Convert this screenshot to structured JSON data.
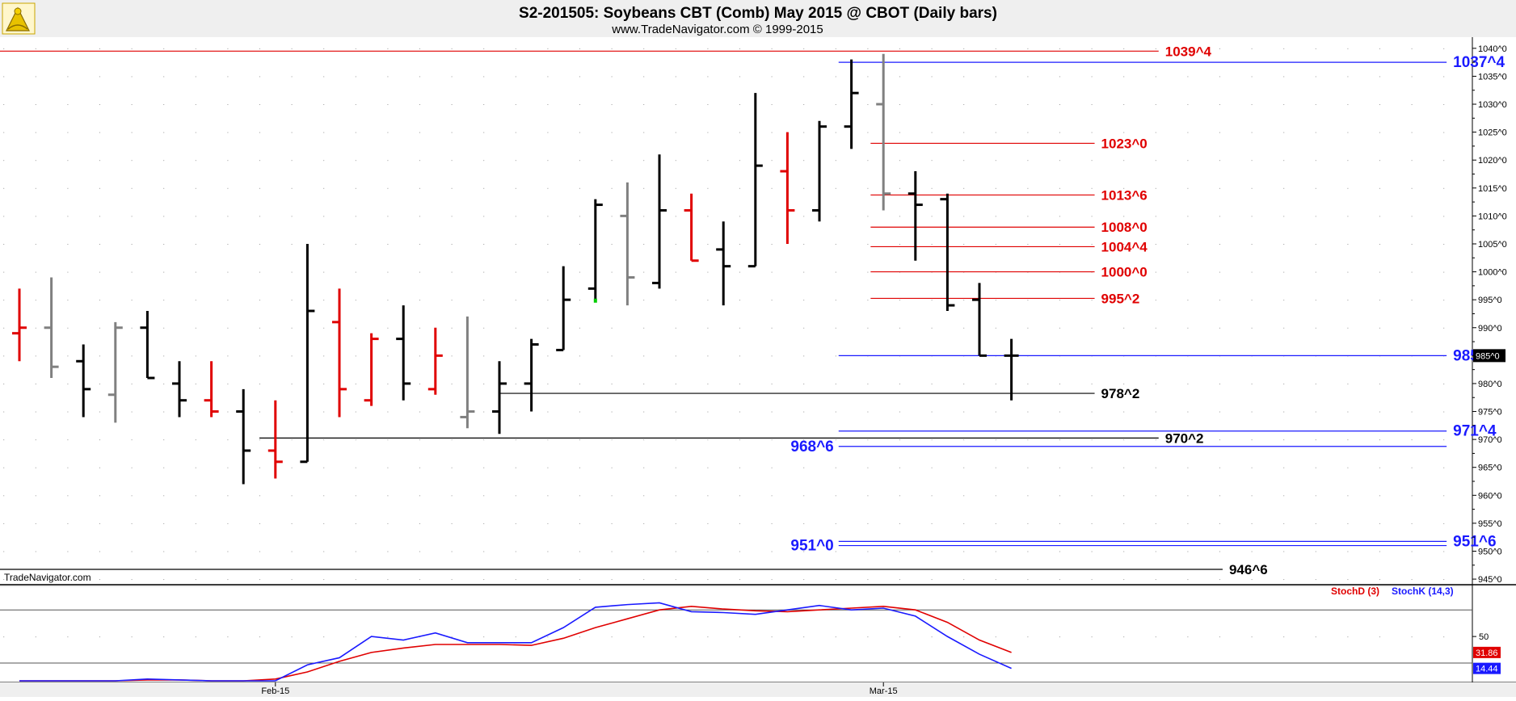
{
  "header": {
    "title": "S2-201505:  Soybeans CBT (Comb) May 2015 @ CBOT  (Daily bars)",
    "subtitle": "www.TradeNavigator.com © 1999-2015"
  },
  "watermark": "TradeNavigator.com",
  "logo_icon": "sextant-logo-icon",
  "colors": {
    "up_bar": "#000000",
    "down_bar": "#e00000",
    "neutral_bar": "#808080",
    "support_level": "#1a1aff",
    "resistance_level": "#e00000",
    "pivot_level": "#000000",
    "stoch_d": "#e00000",
    "stoch_k": "#1a1aff",
    "highlight_tick": "#00cc00"
  },
  "chart_data": [
    {
      "type": "ohlc",
      "name": "price",
      "ylim": [
        944,
        1042
      ],
      "y_ticks": [
        945,
        950,
        955,
        960,
        965,
        970,
        975,
        980,
        985,
        990,
        995,
        1000,
        1005,
        1010,
        1015,
        1020,
        1025,
        1030,
        1035,
        1040
      ],
      "y_tick_suffix": "^0",
      "x_labels": [
        {
          "label": "Feb-15",
          "bar": 8
        },
        {
          "label": "Mar-15",
          "bar": 27
        }
      ],
      "last_price_label": "985^0",
      "bars": [
        {
          "o": 989,
          "h": 997,
          "l": 984,
          "c": 990,
          "color": "down"
        },
        {
          "o": 990,
          "h": 999,
          "l": 981,
          "c": 983,
          "color": "neutral"
        },
        {
          "o": 984,
          "h": 987,
          "l": 974,
          "c": 979,
          "color": "up"
        },
        {
          "o": 978,
          "h": 991,
          "l": 973,
          "c": 990,
          "color": "neutral"
        },
        {
          "o": 990,
          "h": 993,
          "l": 981,
          "c": 981,
          "color": "up"
        },
        {
          "o": 980,
          "h": 984,
          "l": 974,
          "c": 977,
          "color": "up"
        },
        {
          "o": 977,
          "h": 984,
          "l": 974,
          "c": 975,
          "color": "down"
        },
        {
          "o": 975,
          "h": 979,
          "l": 962,
          "c": 968,
          "color": "up"
        },
        {
          "o": 968,
          "h": 977,
          "l": 963,
          "c": 966,
          "color": "down"
        },
        {
          "o": 966,
          "h": 1005,
          "l": 966,
          "c": 993,
          "color": "up"
        },
        {
          "o": 991,
          "h": 997,
          "l": 974,
          "c": 979,
          "color": "down"
        },
        {
          "o": 977,
          "h": 989,
          "l": 976,
          "c": 988,
          "color": "down"
        },
        {
          "o": 988,
          "h": 994,
          "l": 977,
          "c": 980,
          "color": "up"
        },
        {
          "o": 979,
          "h": 990,
          "l": 978,
          "c": 985,
          "color": "down"
        },
        {
          "o": 974,
          "h": 992,
          "l": 972,
          "c": 975,
          "color": "neutral"
        },
        {
          "o": 975,
          "h": 984,
          "l": 971,
          "c": 980,
          "color": "up"
        },
        {
          "o": 980,
          "h": 988,
          "l": 975,
          "c": 987,
          "color": "up"
        },
        {
          "o": 986,
          "h": 1001,
          "l": 986,
          "c": 995,
          "color": "up"
        },
        {
          "o": 997,
          "h": 1013,
          "l": 995,
          "c": 1012,
          "color": "up"
        },
        {
          "o": 1010,
          "h": 1016,
          "l": 994,
          "c": 999,
          "color": "neutral"
        },
        {
          "o": 998,
          "h": 1021,
          "l": 997,
          "c": 1011,
          "color": "up"
        },
        {
          "o": 1011,
          "h": 1014,
          "l": 1002,
          "c": 1002,
          "color": "down"
        },
        {
          "o": 1004,
          "h": 1009,
          "l": 994,
          "c": 1001,
          "color": "up"
        },
        {
          "o": 1001,
          "h": 1032,
          "l": 1001,
          "c": 1019,
          "color": "up"
        },
        {
          "o": 1018,
          "h": 1025,
          "l": 1005,
          "c": 1011,
          "color": "down"
        },
        {
          "o": 1011,
          "h": 1027,
          "l": 1009,
          "c": 1026,
          "color": "up"
        },
        {
          "o": 1026,
          "h": 1038,
          "l": 1022,
          "c": 1032,
          "color": "up"
        },
        {
          "o": 1030,
          "h": 1039,
          "l": 1011,
          "c": 1014,
          "color": "neutral"
        },
        {
          "o": 1014,
          "h": 1018,
          "l": 1002,
          "c": 1012,
          "color": "up"
        },
        {
          "o": 1013,
          "h": 1014,
          "l": 993,
          "c": 994,
          "color": "up"
        },
        {
          "o": 995,
          "h": 998,
          "l": 985,
          "c": 985,
          "color": "up"
        },
        {
          "o": 985,
          "h": 988,
          "l": 977,
          "c": 985,
          "color": "up"
        }
      ],
      "levels": [
        {
          "label": "1039^4",
          "value": 1039.5,
          "from_bar": -1,
          "to_bar": 35.6,
          "color": "resistance",
          "label_pos": "end"
        },
        {
          "label": "1037^4",
          "value": 1037.5,
          "from_bar": 25.6,
          "to_bar": 44.6,
          "color": "support",
          "label_pos": "end"
        },
        {
          "label": "1023^0",
          "value": 1023,
          "from_bar": 26.6,
          "to_bar": 33.6,
          "color": "resistance",
          "label_pos": "end"
        },
        {
          "label": "1013^6",
          "value": 1013.75,
          "from_bar": 26.6,
          "to_bar": 33.6,
          "color": "resistance",
          "label_pos": "end"
        },
        {
          "label": "1008^0",
          "value": 1008,
          "from_bar": 26.6,
          "to_bar": 33.6,
          "color": "resistance",
          "label_pos": "end"
        },
        {
          "label": "1004^4",
          "value": 1004.5,
          "from_bar": 26.6,
          "to_bar": 33.6,
          "color": "resistance",
          "label_pos": "end"
        },
        {
          "label": "1000^0",
          "value": 1000,
          "from_bar": 26.6,
          "to_bar": 33.6,
          "color": "resistance",
          "label_pos": "end"
        },
        {
          "label": "995^2",
          "value": 995.25,
          "from_bar": 26.6,
          "to_bar": 33.6,
          "color": "resistance",
          "label_pos": "end"
        },
        {
          "label": "985^0",
          "value": 985,
          "from_bar": 25.6,
          "to_bar": 44.6,
          "color": "support",
          "label_pos": "end"
        },
        {
          "label": "978^2",
          "value": 978.25,
          "from_bar": 15,
          "to_bar": 33.6,
          "color": "pivot",
          "label_pos": "end"
        },
        {
          "label": "971^4",
          "value": 971.5,
          "from_bar": 25.6,
          "to_bar": 44.6,
          "color": "support",
          "label_pos": "end"
        },
        {
          "label": "970^2",
          "value": 970.25,
          "from_bar": 7.5,
          "to_bar": 35.6,
          "color": "pivot",
          "label_pos": "end"
        },
        {
          "label": "968^6",
          "value": 968.75,
          "from_bar": 25.6,
          "to_bar": 44.6,
          "color": "support",
          "label_pos": "start"
        },
        {
          "label": "951^6",
          "value": 951.75,
          "from_bar": 25.6,
          "to_bar": 44.6,
          "color": "support",
          "label_pos": "end"
        },
        {
          "label": "951^0",
          "value": 951,
          "from_bar": 25.6,
          "to_bar": 44.6,
          "color": "support",
          "label_pos": "start"
        },
        {
          "label": "946^6",
          "value": 946.75,
          "from_bar": -1,
          "to_bar": 37.6,
          "color": "pivot",
          "label_pos": "end"
        }
      ]
    },
    {
      "type": "line",
      "name": "stochastic",
      "ylim": [
        0,
        100
      ],
      "y_ticks": [
        50
      ],
      "ref_lines": [
        20,
        80
      ],
      "legend": [
        "StochD (3)",
        "StochK (14,3)"
      ],
      "value_labels": [
        "31.86",
        "14.44"
      ],
      "series": [
        {
          "name": "StochD (3)",
          "color": "stoch_d",
          "values": [
            0,
            0,
            0,
            0,
            1,
            1,
            0,
            0,
            2,
            10,
            22,
            32,
            37,
            41,
            41,
            41,
            40,
            48,
            60,
            70,
            80,
            84,
            81,
            79,
            78,
            80,
            82,
            84,
            80,
            66,
            46,
            32
          ]
        },
        {
          "name": "StochK (14,3)",
          "color": "stoch_k",
          "values": [
            0,
            0,
            0,
            0,
            2,
            1,
            0,
            0,
            0,
            18,
            26,
            50,
            46,
            54,
            43,
            43,
            43,
            60,
            83,
            86,
            88,
            78,
            77,
            75,
            80,
            85,
            80,
            82,
            73,
            50,
            30,
            14
          ]
        }
      ]
    }
  ]
}
